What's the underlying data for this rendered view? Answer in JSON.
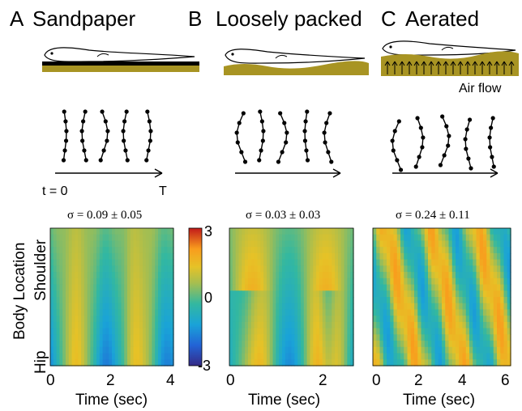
{
  "panels": [
    {
      "letter": "A",
      "title": "Sandpaper",
      "sigma": "σ = 0.09 ± 0.05",
      "xticks": [
        "0",
        "2",
        "4"
      ],
      "xlabel": "Time (sec)",
      "substrate": "sandpaper"
    },
    {
      "letter": "B",
      "title": "Loosely packed",
      "sigma": "σ = 0.03 ± 0.03",
      "xticks": [
        "0",
        "2"
      ],
      "xlabel": "Time (sec)",
      "substrate": "loose-sand"
    },
    {
      "letter": "C",
      "title": "Aerated",
      "sigma": "σ = 0.24 ± 0.11",
      "xticks": [
        "0",
        "2",
        "4",
        "6"
      ],
      "xlabel": "Time (sec)",
      "substrate": "aerated-sand"
    }
  ],
  "airflow_label": "Air flow",
  "time_arrow": {
    "start": "t = 0",
    "end": "T"
  },
  "ylabel": "Body Location",
  "y_top": "Shoulder",
  "y_bottom": "Hip",
  "colorbar": {
    "max": "3",
    "mid": "0",
    "min": "-3"
  },
  "colors": {
    "substrate": "#a89423",
    "sand_dark": "#8a7612"
  }
}
